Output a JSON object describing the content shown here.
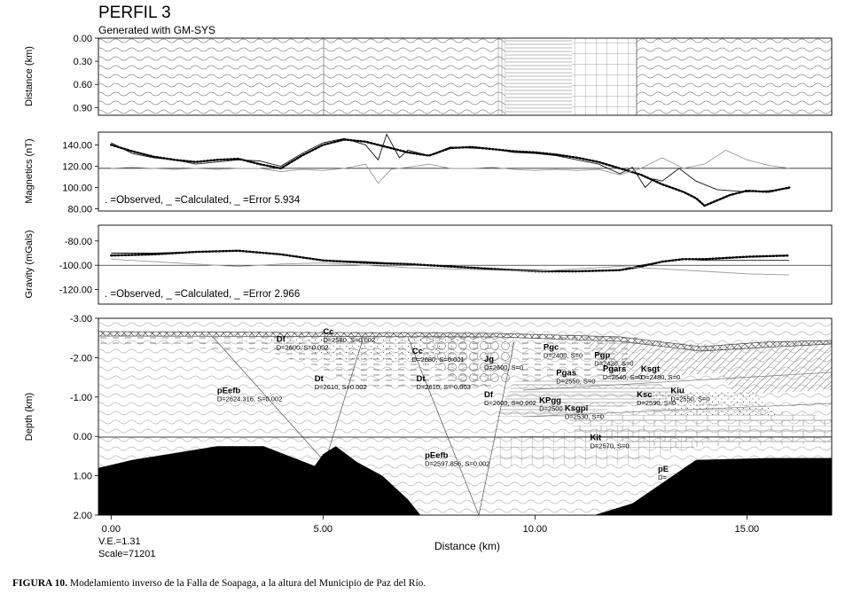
{
  "title": "PERFIL 3",
  "subtitle": "Generated with GM-SYS",
  "caption": {
    "label": "FIGURA 10.",
    "text": " Modelamiento inverso de la Falla de Soapaga, a la altura del Municipio de Paz del Río."
  },
  "footer": {
    "ve": "V.E.=1.31",
    "scale": "Scale=71201"
  },
  "chart_data": [
    {
      "type": "area",
      "ylabel": "Distance (km)",
      "ylim": [
        0.0,
        1.0
      ],
      "yticks": [
        "0.00",
        "0.30",
        "0.60",
        "0.90"
      ],
      "ytick_values": [
        0.0,
        0.3,
        0.6,
        0.9
      ],
      "xlim": [
        -0.3,
        17.0
      ]
    },
    {
      "type": "line",
      "ylabel": "Magnetics (nT)",
      "ylim": [
        78,
        152
      ],
      "yticks": [
        "80.00",
        "100.00",
        "120.00",
        "140.00"
      ],
      "ytick_values": [
        80,
        100,
        120,
        140
      ],
      "xlim": [
        -0.3,
        17.0
      ],
      "legend_text": ". =Observed,  _ =Calculated,  _ =Error 5.934",
      "series": [
        {
          "name": "Observed",
          "x": [
            0.0,
            0.5,
            1.0,
            1.5,
            2.0,
            2.5,
            3.0,
            3.5,
            4.0,
            4.5,
            5.0,
            5.5,
            6.0,
            6.5,
            7.0,
            7.5,
            8.0,
            8.5,
            9.0,
            9.5,
            10.0,
            10.5,
            11.0,
            11.5,
            12.0,
            12.5,
            13.0,
            13.5,
            13.8,
            14.0,
            14.3,
            14.6,
            15.0,
            15.5,
            16.0
          ],
          "y": [
            140,
            134,
            129,
            126,
            124,
            126,
            127,
            122,
            118,
            130,
            140,
            145,
            143,
            138,
            133,
            130,
            137,
            138,
            136,
            134,
            133,
            131,
            128,
            124,
            118,
            112,
            103,
            96,
            90,
            83,
            88,
            93,
            97,
            96,
            100
          ]
        },
        {
          "name": "Calculated",
          "x": [
            0.0,
            0.5,
            1.0,
            1.5,
            2.0,
            2.5,
            3.0,
            3.5,
            4.0,
            4.5,
            5.0,
            5.5,
            6.0,
            6.3,
            6.5,
            6.8,
            7.0,
            7.5,
            8.0,
            8.5,
            9.0,
            9.5,
            10.0,
            10.5,
            11.0,
            11.5,
            12.0,
            12.3,
            12.6,
            12.8,
            13.0,
            13.2,
            13.4,
            13.8,
            14.3,
            15.0,
            15.5,
            16.0
          ],
          "y": [
            142,
            132,
            128,
            126,
            122,
            124,
            126,
            125,
            120,
            132,
            142,
            146,
            140,
            126,
            150,
            128,
            135,
            130,
            138,
            137,
            136,
            133,
            132,
            130,
            126,
            122,
            113,
            119,
            100,
            108,
            106,
            112,
            118,
            106,
            98,
            96,
            97,
            99
          ]
        },
        {
          "name": "Error",
          "x": [
            0.0,
            0.5,
            1.0,
            1.5,
            2.0,
            2.5,
            3.0,
            3.5,
            4.0,
            4.5,
            5.0,
            5.5,
            6.0,
            6.3,
            6.6,
            7.0,
            7.5,
            8.0,
            8.5,
            9.0,
            9.5,
            10.0,
            10.5,
            11.0,
            11.5,
            12.0,
            12.5,
            13.0,
            13.5,
            14.0,
            14.5,
            15.0,
            15.5,
            16.0
          ],
          "y": [
            118,
            119,
            118,
            117,
            118,
            117,
            118,
            118,
            115,
            117,
            116,
            118,
            122,
            104,
            117,
            119,
            122,
            118,
            118,
            119,
            117,
            116,
            117,
            116,
            117,
            112,
            118,
            128,
            118,
            122,
            135,
            126,
            121,
            118
          ]
        }
      ],
      "reference_line": 118
    },
    {
      "type": "line",
      "ylabel": "Gravity (mGals)",
      "ylim": [
        -132,
        -67
      ],
      "yticks": [
        "-80.00",
        "-100.00",
        "-120.00"
      ],
      "ytick_values": [
        -80,
        -100,
        -120
      ],
      "xlim": [
        -0.3,
        17.0
      ],
      "legend_text": ". =Observed,  _ =Calculated,  _ =Error 2.966",
      "series": [
        {
          "name": "Observed",
          "x": [
            0.0,
            1.0,
            2.0,
            3.0,
            4.0,
            5.0,
            6.0,
            7.0,
            8.0,
            9.0,
            10.0,
            11.0,
            12.0,
            12.5,
            13.0,
            13.5,
            14.0,
            15.0,
            16.0
          ],
          "y": [
            -92,
            -91,
            -89,
            -88,
            -91,
            -96,
            -98,
            -99,
            -101,
            -103,
            -105,
            -105,
            -104,
            -101,
            -97,
            -95,
            -95,
            -93,
            -92
          ]
        },
        {
          "name": "Calculated",
          "x": [
            0.0,
            1.0,
            2.0,
            3.0,
            4.0,
            5.0,
            6.0,
            7.0,
            8.0,
            9.0,
            10.0,
            11.0,
            12.0,
            12.5,
            13.0,
            13.5,
            14.0,
            15.0,
            16.0
          ],
          "y": [
            -90,
            -90,
            -89,
            -88,
            -91,
            -96,
            -97,
            -99,
            -101,
            -103,
            -104,
            -105,
            -104,
            -100,
            -97,
            -95,
            -96,
            -96,
            -96
          ]
        },
        {
          "name": "Error",
          "x": [
            0.0,
            1.0,
            2.0,
            3.0,
            4.0,
            5.0,
            6.0,
            7.0,
            8.0,
            9.0,
            10.0,
            11.0,
            12.0,
            13.0,
            14.0,
            15.0,
            16.0
          ],
          "y": [
            -95,
            -97,
            -99,
            -101,
            -99,
            -98,
            -100,
            -102,
            -103,
            -104,
            -105,
            -103,
            -101,
            -103,
            -105,
            -107,
            -108
          ]
        }
      ],
      "reference_line": -100
    },
    {
      "type": "area",
      "ylabel": "Depth (km)",
      "xlabel": "Distance (km)",
      "ylim": [
        -3.0,
        2.0
      ],
      "yticks": [
        "-3.00",
        "-2.00",
        "-1.00",
        "0.00",
        "1.00",
        "2.00"
      ],
      "ytick_values": [
        -3,
        -2,
        -1,
        0,
        1,
        2
      ],
      "xlim": [
        -0.3,
        17.0
      ],
      "xticks": [
        "0.00",
        "5.00",
        "10.00",
        "15.00"
      ],
      "xtick_values": [
        0,
        5,
        10,
        15
      ],
      "basement": {
        "west": {
          "x": [
            -0.3,
            0.5,
            2.5,
            3.6,
            4.8,
            5.0,
            5.3,
            5.8,
            6.4,
            7.0,
            7.3
          ],
          "y": [
            0.8,
            0.6,
            0.25,
            0.25,
            0.75,
            0.45,
            0.25,
            0.65,
            1.0,
            1.6,
            2.0
          ]
        },
        "east": {
          "x": [
            11.4,
            12.3,
            13.8,
            15.5,
            17.0
          ],
          "y": [
            2.0,
            1.7,
            0.6,
            0.55,
            0.55
          ]
        }
      },
      "bodies": [
        {
          "name": "Cc",
          "props": "D=2580, S=0.002",
          "x": 5.0,
          "y": -2.6
        },
        {
          "name": "Df",
          "props": "D=2600, S=0.002",
          "x": 3.9,
          "y": -2.4
        },
        {
          "name": "Cc",
          "props": "D=2680, S=0.001",
          "x": 7.1,
          "y": -2.1
        },
        {
          "name": "Jg",
          "props": "D=2600, S=0",
          "x": 8.8,
          "y": -1.9
        },
        {
          "name": "Pgc",
          "props": "D=2400, S=0",
          "x": 10.2,
          "y": -2.2
        },
        {
          "name": "Pgp",
          "props": "D=2420, S=0",
          "x": 11.4,
          "y": -2.0
        },
        {
          "name": "Dt",
          "props": "D=2610, S=0.002",
          "x": 4.8,
          "y": -1.4
        },
        {
          "name": "Dt",
          "props": "D=2610, S=-0.003",
          "x": 7.2,
          "y": -1.4
        },
        {
          "name": "pEefb",
          "props": "D=2624.316, S=0.002",
          "x": 2.5,
          "y": -1.1
        },
        {
          "name": "Pgas",
          "props": "D=2550, S=0",
          "x": 10.5,
          "y": -1.55
        },
        {
          "name": "Pgars",
          "props": "D=2540, S=0",
          "x": 11.6,
          "y": -1.65
        },
        {
          "name": "Ksgt",
          "props": "D=2480, S=0",
          "x": 12.5,
          "y": -1.65
        },
        {
          "name": "Df",
          "props": "D=2600, S=0.002",
          "x": 8.8,
          "y": -1.0
        },
        {
          "name": "KPgg",
          "props": "D=2500",
          "x": 10.1,
          "y": -0.85
        },
        {
          "name": "Ksgpi",
          "props": "D=2530, S=0",
          "x": 10.7,
          "y": -0.65
        },
        {
          "name": "Ksc",
          "props": "D=2590, S=0",
          "x": 12.4,
          "y": -1.0
        },
        {
          "name": "Kiu",
          "props": "D=2550, S=0",
          "x": 13.2,
          "y": -1.1
        },
        {
          "name": "Kit",
          "props": "D=2570, S=0",
          "x": 11.3,
          "y": 0.1
        },
        {
          "name": "pEefb",
          "props": "D=2597.856, S=0.002",
          "x": 7.4,
          "y": 0.55
        },
        {
          "name": "pE",
          "props": "D=",
          "x": 12.9,
          "y": 0.9
        }
      ]
    }
  ]
}
